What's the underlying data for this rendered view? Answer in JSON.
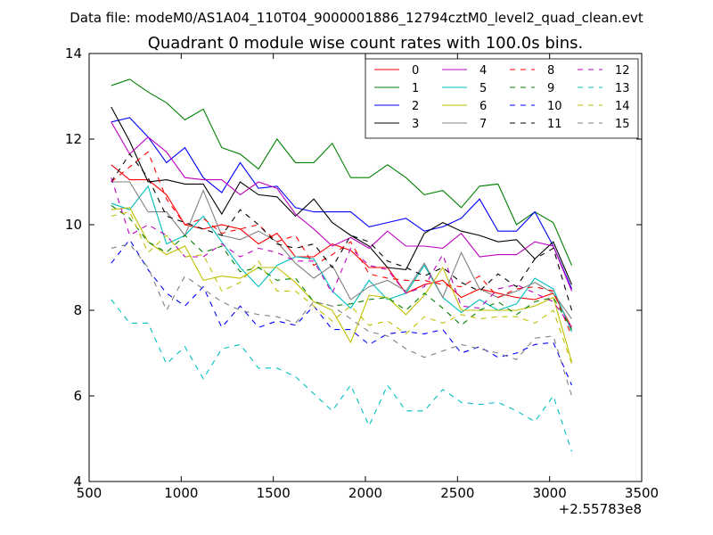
{
  "figure": {
    "suptitle": "Data file: modeM0/AS1A04_110T04_9000001886_12794cztM0_level2_quad_clean.evt"
  },
  "chart_data": {
    "type": "line",
    "title": "Quadrant 0 module wise count rates with 100.0s bins.",
    "xlabel": "",
    "ylabel": "",
    "x_offset_label": "+2.55783e8",
    "xlim": [
      500,
      3500
    ],
    "ylim": [
      4,
      14
    ],
    "xticks": [
      500,
      1000,
      1500,
      2000,
      2500,
      3000,
      3500
    ],
    "yticks": [
      4,
      6,
      8,
      10,
      12,
      14
    ],
    "grid": false,
    "legend_position": "top-right",
    "legend_columns": 4,
    "x": [
      620,
      720,
      820,
      920,
      1020,
      1120,
      1220,
      1320,
      1420,
      1520,
      1620,
      1720,
      1820,
      1920,
      2020,
      2120,
      2220,
      2320,
      2420,
      2520,
      2620,
      2720,
      2820,
      2920,
      3020,
      3120
    ],
    "series": [
      {
        "name": "0",
        "color": "#ff0000",
        "dash": "solid",
        "values": [
          11.4,
          11.05,
          11.05,
          10.7,
          10.0,
          9.9,
          10.0,
          9.9,
          9.55,
          9.8,
          9.25,
          9.25,
          9.55,
          9.4,
          9.0,
          9.0,
          8.4,
          8.6,
          8.7,
          8.3,
          8.5,
          8.4,
          8.3,
          8.25,
          8.4,
          7.6
        ]
      },
      {
        "name": "1",
        "color": "#008000",
        "dash": "solid",
        "values": [
          13.25,
          13.4,
          13.1,
          12.85,
          12.45,
          12.7,
          11.8,
          11.65,
          11.3,
          12.0,
          11.45,
          11.45,
          11.9,
          11.1,
          11.1,
          11.4,
          11.1,
          10.7,
          10.8,
          10.4,
          10.9,
          10.95,
          10.0,
          10.3,
          10.05,
          9.05
        ]
      },
      {
        "name": "2",
        "color": "#0000ff",
        "dash": "solid",
        "values": [
          12.4,
          12.5,
          12.05,
          11.45,
          11.8,
          11.1,
          10.75,
          11.45,
          10.85,
          10.9,
          10.4,
          10.3,
          10.3,
          10.3,
          9.95,
          10.05,
          10.15,
          9.85,
          9.95,
          10.15,
          10.6,
          9.85,
          9.85,
          10.3,
          9.5,
          8.5
        ]
      },
      {
        "name": "3",
        "color": "#000000",
        "dash": "solid",
        "values": [
          12.75,
          11.95,
          11.0,
          11.05,
          10.95,
          10.95,
          10.25,
          11.0,
          10.7,
          10.65,
          10.2,
          10.6,
          10.05,
          9.75,
          9.5,
          9.0,
          8.95,
          9.8,
          10.05,
          9.85,
          9.75,
          9.6,
          9.65,
          9.2,
          9.6,
          8.6
        ]
      },
      {
        "name": "4",
        "color": "#bf00bf",
        "dash": "solid",
        "values": [
          12.4,
          11.65,
          12.05,
          11.7,
          11.1,
          11.05,
          11.05,
          10.7,
          11.0,
          10.85,
          10.25,
          9.9,
          9.5,
          9.7,
          9.45,
          9.85,
          9.5,
          9.5,
          9.45,
          9.8,
          9.25,
          9.3,
          9.3,
          9.6,
          9.5,
          8.45
        ]
      },
      {
        "name": "5",
        "color": "#00bfbf",
        "dash": "solid",
        "values": [
          10.5,
          10.35,
          10.9,
          9.55,
          9.75,
          10.2,
          9.6,
          9.0,
          8.55,
          9.05,
          9.25,
          9.2,
          8.45,
          8.05,
          8.7,
          8.25,
          8.4,
          9.05,
          8.3,
          7.95,
          8.25,
          8.0,
          8.15,
          8.75,
          8.5,
          7.5
        ]
      },
      {
        "name": "6",
        "color": "#bfbf00",
        "dash": "solid",
        "values": [
          10.35,
          10.4,
          9.6,
          9.3,
          9.5,
          8.7,
          8.8,
          8.75,
          9.0,
          9.0,
          8.65,
          8.2,
          8.0,
          7.25,
          8.35,
          8.3,
          7.9,
          8.35,
          9.0,
          8.0,
          8.0,
          8.0,
          8.0,
          8.1,
          8.3,
          6.8
        ]
      },
      {
        "name": "7",
        "color": "#808080",
        "dash": "solid",
        "values": [
          11.0,
          11.0,
          10.3,
          10.3,
          9.75,
          10.8,
          9.75,
          9.65,
          9.85,
          9.6,
          9.1,
          8.75,
          9.05,
          8.25,
          8.55,
          8.7,
          8.45,
          9.1,
          8.3,
          9.35,
          8.5,
          8.3,
          8.45,
          8.65,
          8.4,
          7.8
        ]
      },
      {
        "name": "8",
        "color": "#ff0000",
        "dash": "dashed",
        "values": [
          11.0,
          11.35,
          11.7,
          10.6,
          10.0,
          10.15,
          9.8,
          9.9,
          10.0,
          9.6,
          9.75,
          9.05,
          9.3,
          9.6,
          8.85,
          8.75,
          8.7,
          8.7,
          8.6,
          8.55,
          8.8,
          8.3,
          8.5,
          8.55,
          8.45,
          7.4
        ]
      },
      {
        "name": "9",
        "color": "#008000",
        "dash": "dashed",
        "values": [
          10.45,
          10.15,
          9.6,
          9.35,
          9.75,
          9.35,
          9.5,
          8.9,
          9.0,
          8.7,
          8.75,
          8.2,
          8.1,
          8.15,
          8.25,
          8.3,
          8.0,
          8.4,
          8.05,
          7.65,
          8.0,
          8.2,
          7.9,
          8.2,
          8.3,
          7.55
        ]
      },
      {
        "name": "10",
        "color": "#0000ff",
        "dash": "dashed",
        "values": [
          9.1,
          9.65,
          8.95,
          8.4,
          8.1,
          8.55,
          7.6,
          8.1,
          7.6,
          7.75,
          7.65,
          8.1,
          7.55,
          7.55,
          7.2,
          7.45,
          7.5,
          7.45,
          7.55,
          7.0,
          7.15,
          6.9,
          7.0,
          7.2,
          7.25,
          6.25
        ]
      },
      {
        "name": "11",
        "color": "#000000",
        "dash": "dashed",
        "values": [
          11.0,
          11.65,
          11.1,
          10.2,
          10.05,
          9.9,
          9.75,
          10.35,
          10.0,
          9.55,
          9.45,
          9.55,
          9.0,
          9.75,
          9.6,
          9.15,
          9.0,
          8.8,
          9.0,
          8.65,
          8.45,
          8.85,
          8.55,
          9.2,
          9.45,
          8.0
        ]
      },
      {
        "name": "12",
        "color": "#bf00bf",
        "dash": "dashed",
        "values": [
          11.1,
          9.75,
          10.0,
          9.75,
          9.25,
          9.25,
          9.55,
          9.25,
          9.45,
          9.35,
          9.15,
          9.15,
          8.4,
          9.45,
          9.05,
          8.95,
          8.4,
          8.55,
          9.3,
          8.1,
          8.05,
          8.5,
          8.6,
          8.4,
          8.2,
          7.6
        ]
      },
      {
        "name": "13",
        "color": "#00bfbf",
        "dash": "dashed",
        "values": [
          8.25,
          7.7,
          7.7,
          6.75,
          7.15,
          6.4,
          7.1,
          7.2,
          6.65,
          6.65,
          6.45,
          6.05,
          5.65,
          6.25,
          5.3,
          6.25,
          5.65,
          5.65,
          6.15,
          5.85,
          5.8,
          5.85,
          5.65,
          5.4,
          6.0,
          4.7
        ]
      },
      {
        "name": "14",
        "color": "#bfbf00",
        "dash": "dashed",
        "values": [
          10.2,
          10.3,
          9.35,
          9.75,
          9.25,
          9.3,
          8.45,
          8.65,
          9.15,
          8.45,
          8.45,
          8.1,
          7.75,
          8.1,
          7.65,
          7.75,
          7.45,
          7.85,
          7.7,
          7.9,
          7.8,
          7.85,
          7.85,
          7.7,
          8.0,
          6.75
        ]
      },
      {
        "name": "15",
        "color": "#808080",
        "dash": "dashed",
        "values": [
          9.45,
          9.55,
          9.0,
          8.0,
          8.8,
          8.5,
          8.2,
          8.0,
          7.9,
          7.85,
          7.7,
          8.2,
          8.1,
          7.8,
          7.5,
          7.4,
          7.1,
          6.9,
          7.05,
          7.2,
          7.1,
          7.0,
          6.85,
          7.35,
          7.4,
          6.0
        ]
      }
    ]
  }
}
